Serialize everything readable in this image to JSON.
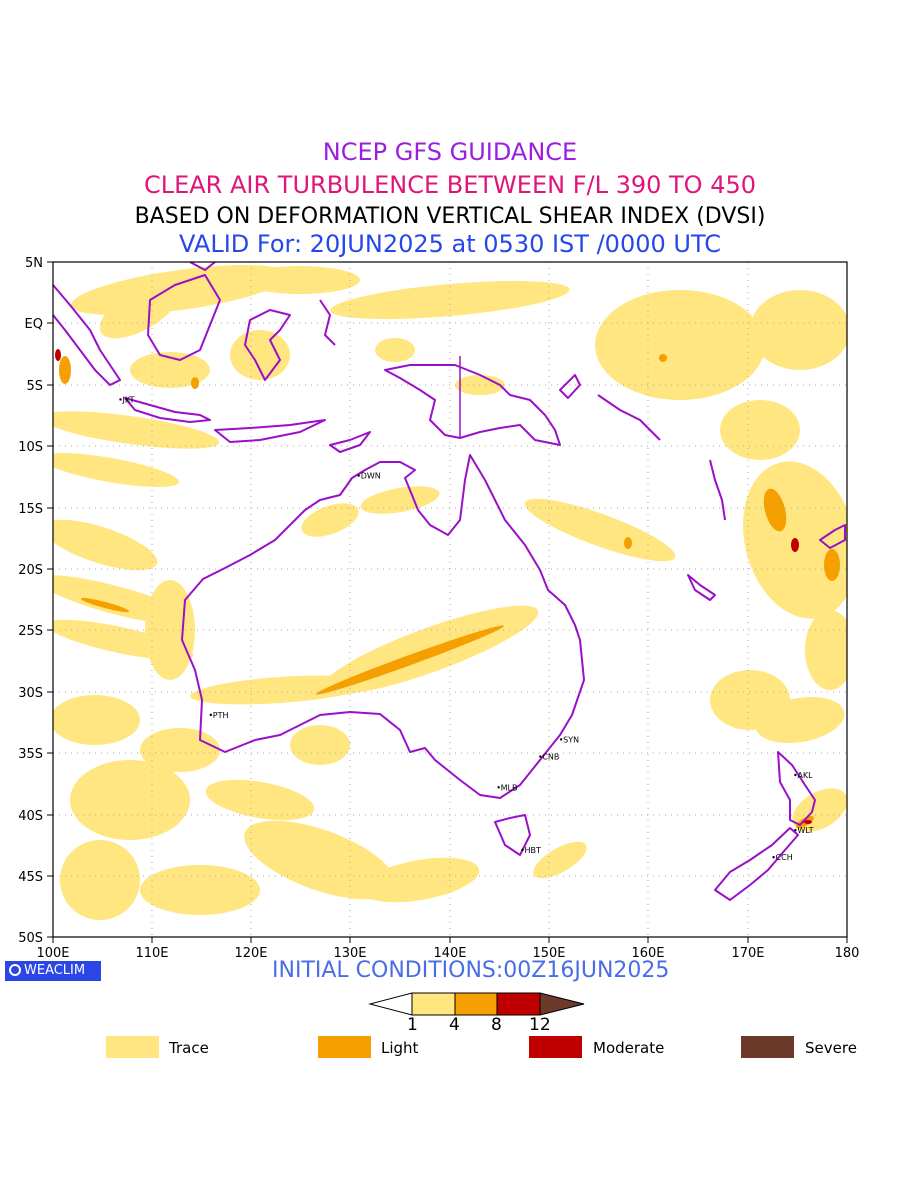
{
  "titles": {
    "line1": "NCEP GFS GUIDANCE",
    "line2": "CLEAR AIR TURBULENCE BETWEEN F/L 390 TO 450",
    "line3": "BASED ON DEFORMATION VERTICAL SHEAR INDEX (DVSI)",
    "line4": "VALID For: 20JUN2025 at 0530 IST /0000 UTC"
  },
  "map": {
    "lon_labels": [
      "100E",
      "110E",
      "120E",
      "130E",
      "140E",
      "150E",
      "160E",
      "170E",
      "180"
    ],
    "lat_labels": [
      "5N",
      "EQ",
      "5S",
      "10S",
      "15S",
      "20S",
      "25S",
      "30S",
      "35S",
      "40S",
      "45S",
      "50S"
    ],
    "cities": [
      {
        "code": "JKT",
        "lon": 106.8,
        "lat": -6.2
      },
      {
        "code": "DWN",
        "lon": 130.8,
        "lat": -12.4
      },
      {
        "code": "PTH",
        "lon": 115.9,
        "lat": -31.9
      },
      {
        "code": "SYN",
        "lon": 151.2,
        "lat": -33.9
      },
      {
        "code": "CNB",
        "lon": 149.1,
        "lat": -35.3
      },
      {
        "code": "MLB",
        "lon": 144.9,
        "lat": -37.8
      },
      {
        "code": "HBT",
        "lon": 147.3,
        "lat": -42.9
      },
      {
        "code": "AKL",
        "lon": 174.8,
        "lat": -36.8
      },
      {
        "code": "WLT",
        "lon": 174.8,
        "lat": -41.3
      },
      {
        "code": "CCH",
        "lon": 172.6,
        "lat": -43.5
      }
    ],
    "colors": {
      "coast": "#9a10c8",
      "trace": "#ffe680",
      "light": "#f5a000",
      "moderate": "#c00000",
      "severe": "#6b3a2a"
    }
  },
  "footer": {
    "brand": "WEACLIM",
    "initial_conditions": "INITIAL CONDITIONS:00Z16JUN2025"
  },
  "colorbar": {
    "thresholds": [
      "1",
      "4",
      "8",
      "12"
    ]
  },
  "legend": [
    {
      "label": "Trace",
      "color": "#ffe680"
    },
    {
      "label": "Light",
      "color": "#f5a000"
    },
    {
      "label": "Moderate",
      "color": "#c00000"
    },
    {
      "label": "Severe",
      "color": "#6b3a2a"
    }
  ]
}
